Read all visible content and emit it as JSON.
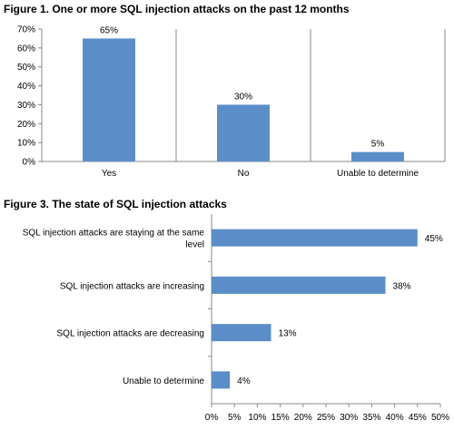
{
  "chart_data": [
    {
      "type": "bar",
      "title": "Figure 1. One or more SQL injection attacks on the past 12 months",
      "categories": [
        "Yes",
        "No",
        "Unable to determine"
      ],
      "values": [
        65,
        30,
        5
      ],
      "value_labels": [
        "65%",
        "30%",
        "5%"
      ],
      "ylim": [
        0,
        70
      ],
      "yticks": [
        "0%",
        "10%",
        "20%",
        "30%",
        "40%",
        "50%",
        "60%",
        "70%"
      ],
      "grid": false,
      "bar_color": "#5b8ec9"
    },
    {
      "type": "bar",
      "orientation": "horizontal",
      "title": "Figure 3. The state of SQL injection attacks",
      "categories": [
        [
          "SQL injection attacks are staying at the same",
          "level"
        ],
        [
          "SQL injection attacks are increasing"
        ],
        [
          "SQL injection attacks are decreasing"
        ],
        [
          "Unable to determine"
        ]
      ],
      "values": [
        45,
        38,
        13,
        4
      ],
      "value_labels": [
        "45%",
        "38%",
        "13%",
        "4%"
      ],
      "xlim": [
        0,
        50
      ],
      "xticks": [
        "0%",
        "5%",
        "10%",
        "15%",
        "20%",
        "25%",
        "30%",
        "35%",
        "40%",
        "45%",
        "50%"
      ],
      "grid": false,
      "bar_color": "#5b8ec9"
    }
  ]
}
